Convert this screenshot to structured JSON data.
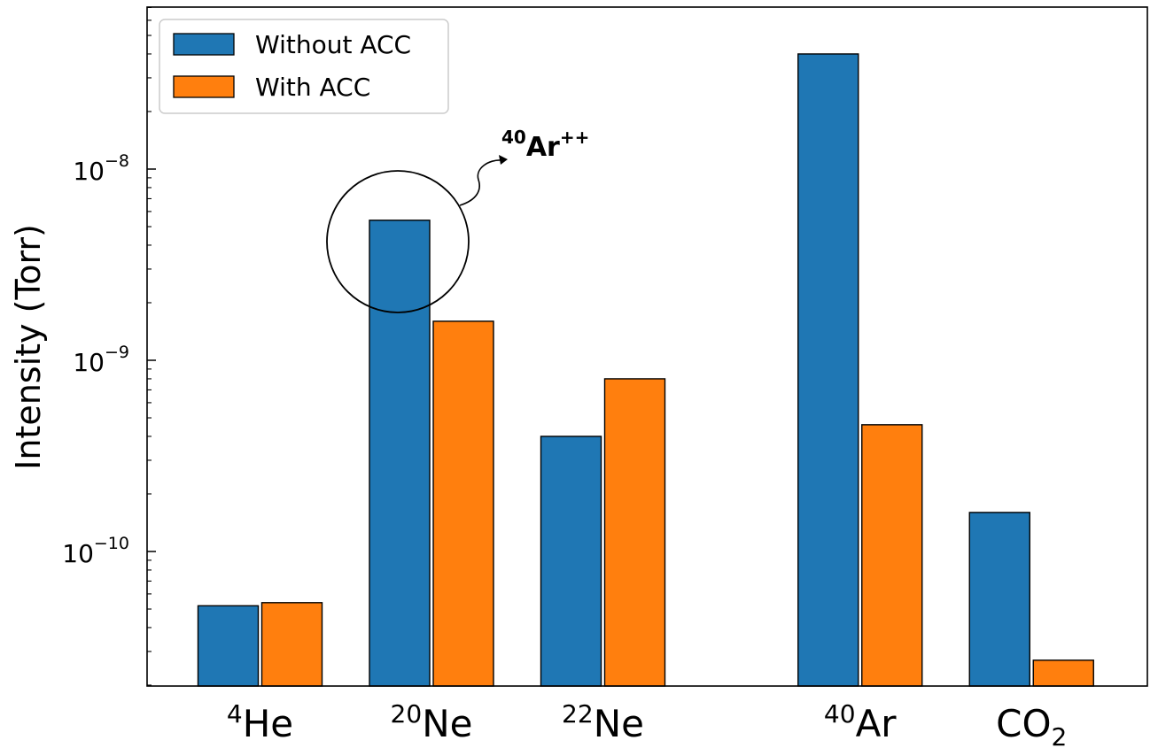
{
  "chart_data": {
    "type": "bar",
    "scale": "log",
    "ylabel": "Intensity (Torr)",
    "ylim": [
      2e-11,
      7e-08
    ],
    "y_ticks": [
      {
        "value": 1e-10,
        "base": "10",
        "exp": "−10"
      },
      {
        "value": 1e-09,
        "base": "10",
        "exp": "−9"
      },
      {
        "value": 1e-08,
        "base": "10",
        "exp": "−8"
      }
    ],
    "categories": [
      {
        "sup": "4",
        "main": "He",
        "sub": ""
      },
      {
        "sup": "20",
        "main": "Ne",
        "sub": ""
      },
      {
        "sup": "22",
        "main": "Ne",
        "sub": ""
      },
      {
        "sup": "40",
        "main": "Ar",
        "sub": ""
      },
      {
        "sup": "",
        "main": "CO",
        "sub": "2"
      }
    ],
    "category_positions": [
      0,
      1,
      2,
      3.5,
      4.5
    ],
    "series": [
      {
        "name": "Without ACC",
        "color": "#1f77b4",
        "values": [
          5.2e-11,
          5.4e-09,
          4e-10,
          4e-08,
          1.6e-10
        ]
      },
      {
        "name": "With ACC",
        "color": "#ff7f0e",
        "values": [
          5.4e-11,
          1.6e-09,
          8e-10,
          4.6e-10,
          2.7e-11
        ]
      }
    ],
    "legend_position": "upper-left",
    "grid": false,
    "annotation": {
      "sup": "40",
      "main": "Ar",
      "post": "++",
      "target_category": 1
    }
  }
}
